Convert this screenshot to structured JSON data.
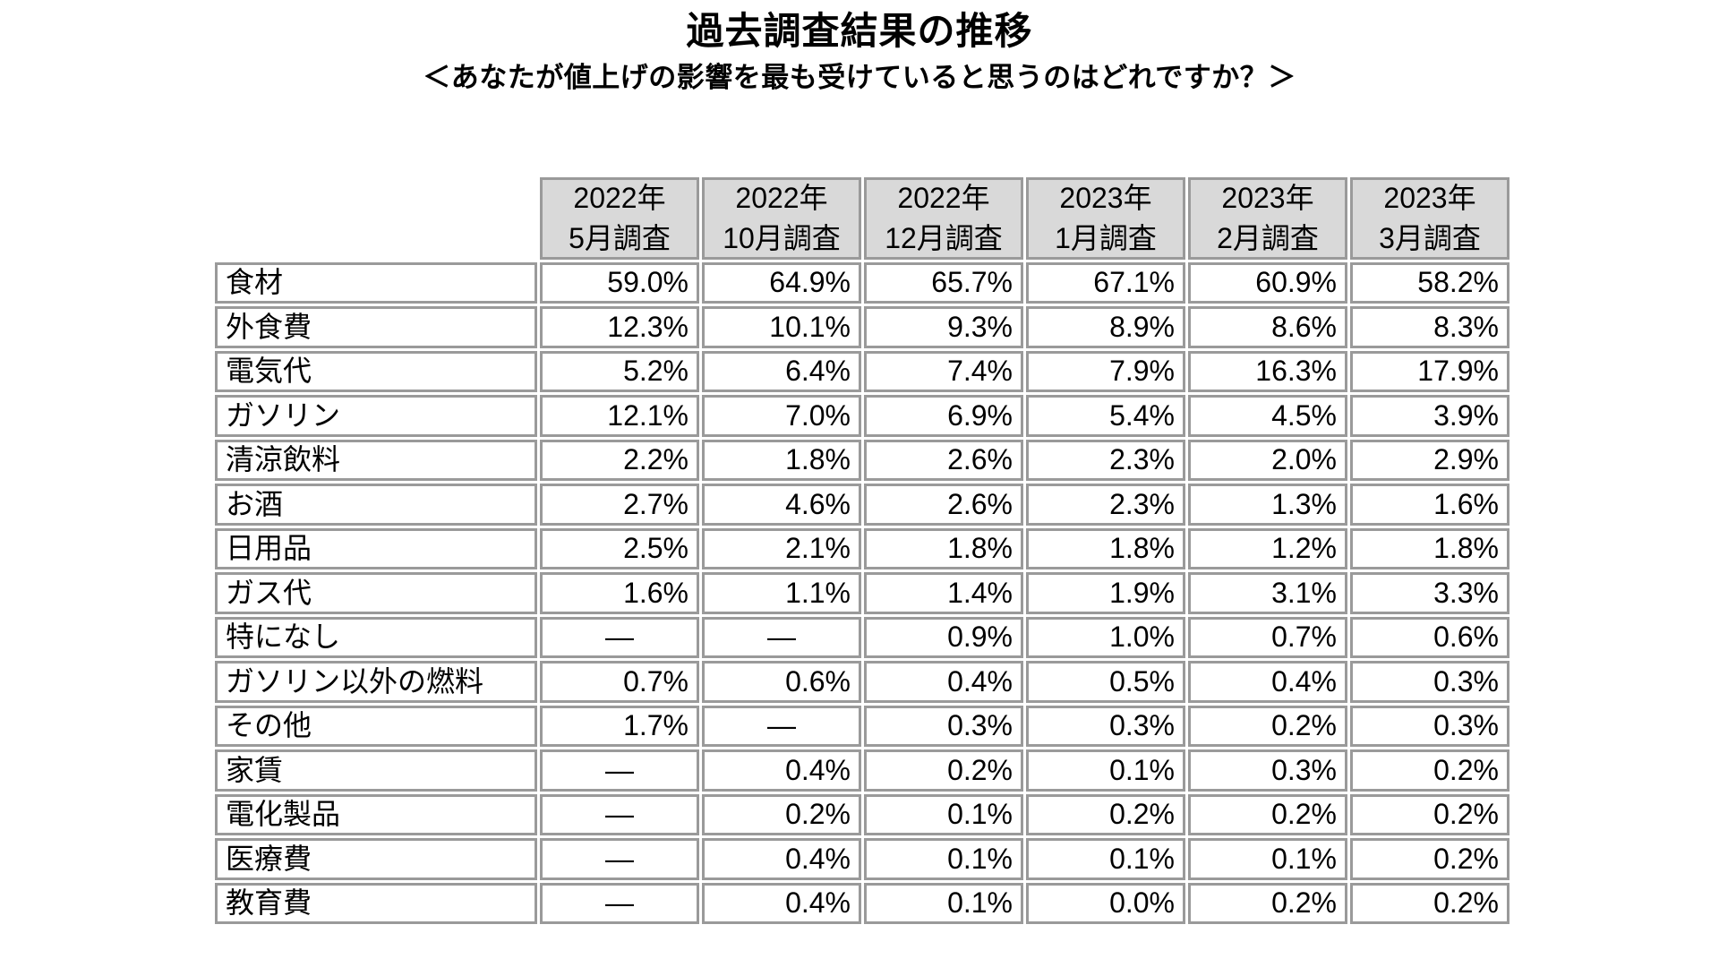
{
  "chart_data": {
    "type": "table",
    "title": "過去調査結果の推移",
    "subtitle": "＜あなたが値上げの影響を最も受けていると思うのはどれですか？＞",
    "columns": [
      {
        "year": "2022年",
        "survey": "5月調査"
      },
      {
        "year": "2022年",
        "survey": "10月調査"
      },
      {
        "year": "2022年",
        "survey": "12月調査"
      },
      {
        "year": "2023年",
        "survey": "1月調査"
      },
      {
        "year": "2023年",
        "survey": "2月調査"
      },
      {
        "year": "2023年",
        "survey": "3月調査"
      }
    ],
    "rows": [
      {
        "label": "食材",
        "values": [
          "59.0%",
          "64.9%",
          "65.7%",
          "67.1%",
          "60.9%",
          "58.2%"
        ]
      },
      {
        "label": "外食費",
        "values": [
          "12.3%",
          "10.1%",
          "9.3%",
          "8.9%",
          "8.6%",
          "8.3%"
        ]
      },
      {
        "label": "電気代",
        "values": [
          "5.2%",
          "6.4%",
          "7.4%",
          "7.9%",
          "16.3%",
          "17.9%"
        ]
      },
      {
        "label": "ガソリン",
        "values": [
          "12.1%",
          "7.0%",
          "6.9%",
          "5.4%",
          "4.5%",
          "3.9%"
        ]
      },
      {
        "label": "清涼飲料",
        "values": [
          "2.2%",
          "1.8%",
          "2.6%",
          "2.3%",
          "2.0%",
          "2.9%"
        ]
      },
      {
        "label": "お酒",
        "values": [
          "2.7%",
          "4.6%",
          "2.6%",
          "2.3%",
          "1.3%",
          "1.6%"
        ]
      },
      {
        "label": "日用品",
        "values": [
          "2.5%",
          "2.1%",
          "1.8%",
          "1.8%",
          "1.2%",
          "1.8%"
        ]
      },
      {
        "label": "ガス代",
        "values": [
          "1.6%",
          "1.1%",
          "1.4%",
          "1.9%",
          "3.1%",
          "3.3%"
        ]
      },
      {
        "label": "特になし",
        "values": [
          "―",
          "―",
          "0.9%",
          "1.0%",
          "0.7%",
          "0.6%"
        ]
      },
      {
        "label": "ガソリン以外の燃料",
        "values": [
          "0.7%",
          "0.6%",
          "0.4%",
          "0.5%",
          "0.4%",
          "0.3%"
        ]
      },
      {
        "label": "その他",
        "values": [
          "1.7%",
          "―",
          "0.3%",
          "0.3%",
          "0.2%",
          "0.3%"
        ]
      },
      {
        "label": "家賃",
        "values": [
          "―",
          "0.4%",
          "0.2%",
          "0.1%",
          "0.3%",
          "0.2%"
        ]
      },
      {
        "label": "電化製品",
        "values": [
          "―",
          "0.2%",
          "0.1%",
          "0.2%",
          "0.2%",
          "0.2%"
        ]
      },
      {
        "label": "医療費",
        "values": [
          "―",
          "0.4%",
          "0.1%",
          "0.1%",
          "0.1%",
          "0.2%"
        ]
      },
      {
        "label": "教育費",
        "values": [
          "―",
          "0.4%",
          "0.1%",
          "0.0%",
          "0.2%",
          "0.2%"
        ]
      }
    ],
    "value_unit": "%",
    "missing_marker": "―",
    "layout": {
      "header_bg": "#d9d9d9",
      "border_color": "#9a9a9a",
      "text_color": "#000000",
      "grid": "all-borders",
      "legend": "none",
      "value_align": "right",
      "missing_align": "center"
    }
  }
}
